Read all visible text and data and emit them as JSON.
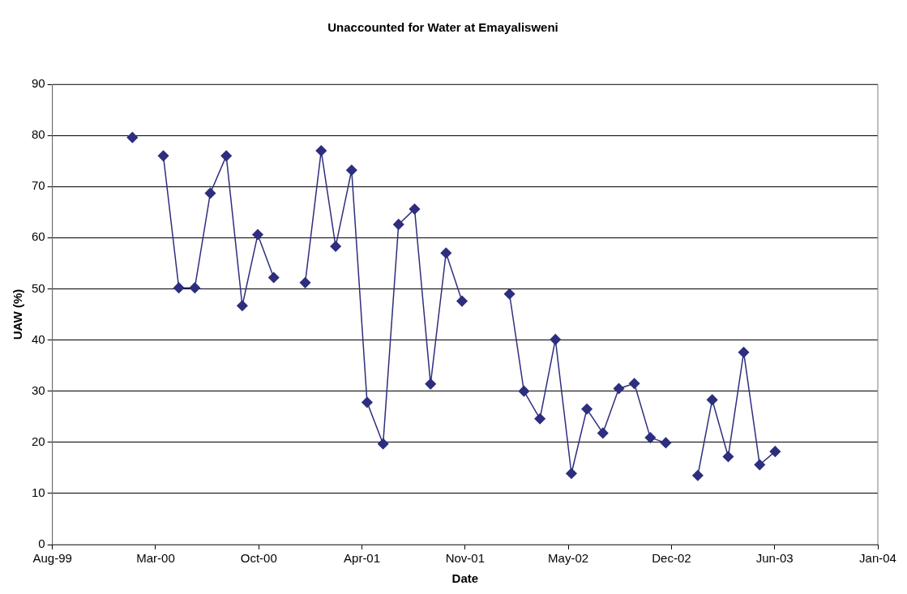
{
  "chart_data": {
    "type": "line",
    "title": "Unaccounted for Water at Emayalisweni",
    "xlabel": "Date",
    "ylabel": "UAW (%)",
    "x": [
      "2000-02",
      "2000-03",
      "2000-04",
      "2000-05",
      "2000-06",
      "2000-07",
      "2000-08",
      "2000-09",
      "2000-10",
      "2000-11",
      "2000-12",
      "2001-01",
      "2001-02",
      "2001-03",
      "2001-04",
      "2001-05",
      "2001-06",
      "2001-07",
      "2001-08",
      "2001-09",
      "2001-10",
      "2001-11",
      "2001-12",
      "2002-01",
      "2002-02",
      "2002-03",
      "2002-04",
      "2002-05",
      "2002-06",
      "2002-07",
      "2002-08",
      "2002-09",
      "2002-10",
      "2002-11",
      "2002-12",
      "2003-01",
      "2003-02",
      "2003-03",
      "2003-04",
      "2003-05",
      "2003-06",
      "2003-07"
    ],
    "series": [
      {
        "color": "#2e2e7e",
        "values": [
          79.6,
          null,
          76,
          50.2,
          50.2,
          68.7,
          76,
          46.7,
          60.6,
          52.2,
          null,
          51.2,
          77,
          58.3,
          73.2,
          27.8,
          19.7,
          62.6,
          65.6,
          31.4,
          57,
          47.6,
          null,
          null,
          49,
          30,
          24.6,
          40.1,
          13.9,
          26.5,
          21.8,
          30.5,
          31.5,
          20.9,
          19.9,
          null,
          13.5,
          28.3,
          17.2,
          37.6,
          15.6,
          18.2
        ]
      }
    ],
    "xlim": [
      "1999-08-30",
      "2004-01-16"
    ],
    "xticks": [
      {
        "value": "1999-08-30",
        "label": "Aug-99"
      },
      {
        "value": "2000-03-17",
        "label": "Mar-00"
      },
      {
        "value": "2000-10-03",
        "label": "Oct-00"
      },
      {
        "value": "2001-04-21",
        "label": "Apr-01"
      },
      {
        "value": "2001-11-07",
        "label": "Nov-01"
      },
      {
        "value": "2002-05-26",
        "label": "May-02"
      },
      {
        "value": "2002-12-12",
        "label": "Dec-02"
      },
      {
        "value": "2003-06-30",
        "label": "Jun-03"
      },
      {
        "value": "2004-01-16",
        "label": "Jan-04"
      }
    ],
    "ylim": [
      0,
      90
    ],
    "yticks": [
      0,
      10,
      20,
      30,
      40,
      50,
      60,
      70,
      80,
      90
    ],
    "grid": "y",
    "legend": false,
    "marker": "diamond",
    "line_style": "solid"
  }
}
